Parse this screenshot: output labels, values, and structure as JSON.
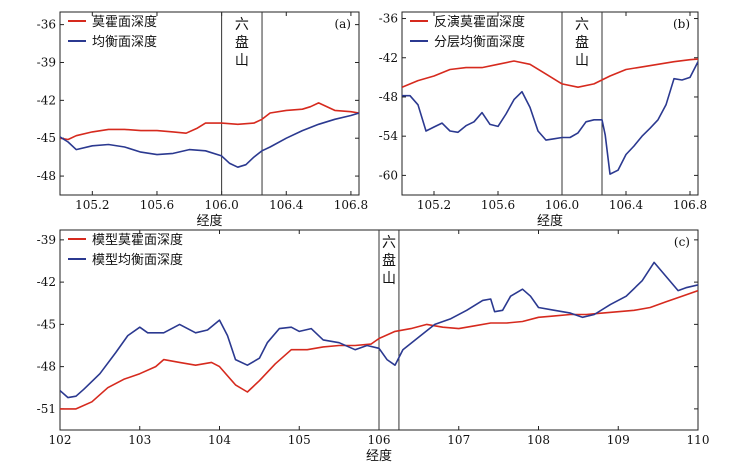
{
  "chart_data": [
    {
      "type": "line",
      "panel_label": "(a)",
      "xlabel": "经度",
      "ylabel": "",
      "xlim": [
        105.0,
        106.85
      ],
      "ylim": [
        -49.5,
        -35
      ],
      "xticks": [
        "105.2",
        "105.6",
        "106.0",
        "106.4",
        "106.8"
      ],
      "xtick_values": [
        105.2,
        105.6,
        106.0,
        106.4,
        106.8
      ],
      "yticks": [
        "-36",
        "-39",
        "-42",
        "-45",
        "-48"
      ],
      "ytick_values": [
        -36,
        -39,
        -42,
        -45,
        -48
      ],
      "vlines": [
        106.0,
        106.25
      ],
      "annotation": [
        "六",
        "盘",
        "山"
      ],
      "legend_position": "top-left",
      "series": [
        {
          "name": "莫霍面深度",
          "color": "#d62a1e",
          "x": [
            105.0,
            105.05,
            105.1,
            105.2,
            105.3,
            105.4,
            105.5,
            105.6,
            105.7,
            105.78,
            105.85,
            105.9,
            106.0,
            106.1,
            106.2,
            106.25,
            106.3,
            106.4,
            106.5,
            106.55,
            106.6,
            106.7,
            106.8,
            106.85
          ],
          "y": [
            -45.0,
            -45.1,
            -44.8,
            -44.5,
            -44.3,
            -44.3,
            -44.4,
            -44.4,
            -44.5,
            -44.6,
            -44.2,
            -43.8,
            -43.8,
            -43.9,
            -43.8,
            -43.5,
            -43.0,
            -42.8,
            -42.7,
            -42.5,
            -42.2,
            -42.8,
            -42.9,
            -43.0
          ]
        },
        {
          "name": "均衡面深度",
          "color": "#2b3990",
          "x": [
            105.0,
            105.05,
            105.1,
            105.2,
            105.3,
            105.4,
            105.5,
            105.6,
            105.7,
            105.8,
            105.9,
            106.0,
            106.05,
            106.1,
            106.15,
            106.2,
            106.25,
            106.3,
            106.4,
            106.5,
            106.6,
            106.7,
            106.8,
            106.85
          ],
          "y": [
            -44.9,
            -45.3,
            -45.9,
            -45.6,
            -45.5,
            -45.7,
            -46.1,
            -46.3,
            -46.2,
            -45.9,
            -46.0,
            -46.4,
            -47.0,
            -47.3,
            -47.1,
            -46.5,
            -46.0,
            -45.7,
            -45.0,
            -44.4,
            -43.9,
            -43.5,
            -43.2,
            -43.0
          ]
        }
      ]
    },
    {
      "type": "line",
      "panel_label": "(b)",
      "xlabel": "经度",
      "ylabel": "",
      "xlim": [
        105.0,
        106.85
      ],
      "ylim": [
        -63,
        -35
      ],
      "xticks": [
        "105.2",
        "105.6",
        "106.0",
        "106.4",
        "106.8"
      ],
      "xtick_values": [
        105.2,
        105.6,
        106.0,
        106.4,
        106.8
      ],
      "yticks": [
        "-36",
        "-42",
        "-48",
        "-54",
        "-60"
      ],
      "ytick_values": [
        -36,
        -42,
        -48,
        -54,
        -60
      ],
      "vlines": [
        106.0,
        106.25
      ],
      "annotation": [
        "六",
        "盘",
        "山"
      ],
      "legend_position": "top-left",
      "series": [
        {
          "name": "反演莫霍面深度",
          "color": "#d62a1e",
          "x": [
            105.0,
            105.1,
            105.2,
            105.3,
            105.4,
            105.5,
            105.6,
            105.7,
            105.8,
            105.9,
            106.0,
            106.1,
            106.2,
            106.3,
            106.4,
            106.5,
            106.6,
            106.7,
            106.8,
            106.85
          ],
          "y": [
            -46.5,
            -45.5,
            -44.8,
            -43.8,
            -43.5,
            -43.5,
            -43.0,
            -42.5,
            -43.0,
            -44.5,
            -46.0,
            -46.5,
            -46.0,
            -44.8,
            -43.8,
            -43.4,
            -43.0,
            -42.6,
            -42.3,
            -42.2
          ]
        },
        {
          "name": "分层均衡面深度",
          "color": "#2b3990",
          "x": [
            105.0,
            105.05,
            105.1,
            105.15,
            105.2,
            105.25,
            105.3,
            105.35,
            105.4,
            105.45,
            105.5,
            105.55,
            105.6,
            105.65,
            105.7,
            105.75,
            105.8,
            105.85,
            105.9,
            105.95,
            106.0,
            106.05,
            106.1,
            106.15,
            106.2,
            106.25,
            106.27,
            106.3,
            106.35,
            106.4,
            106.45,
            106.5,
            106.55,
            106.6,
            106.65,
            106.7,
            106.75,
            106.8,
            106.85
          ],
          "y": [
            -47.8,
            -47.8,
            -49.2,
            -53.2,
            -52.6,
            -52.0,
            -53.2,
            -53.4,
            -52.4,
            -51.8,
            -50.4,
            -52.2,
            -52.5,
            -50.6,
            -48.4,
            -47.2,
            -49.6,
            -53.2,
            -54.6,
            -54.4,
            -54.2,
            -54.2,
            -53.5,
            -51.8,
            -51.5,
            -51.5,
            -53.8,
            -59.8,
            -59.2,
            -56.8,
            -55.5,
            -54.0,
            -52.8,
            -51.5,
            -49.2,
            -45.2,
            -45.4,
            -45.0,
            -42.6
          ]
        }
      ]
    },
    {
      "type": "line",
      "panel_label": "(c)",
      "xlabel": "经度",
      "ylabel": "",
      "xlim": [
        102,
        110
      ],
      "ylim": [
        -52.5,
        -38.3
      ],
      "xticks": [
        "102",
        "103",
        "104",
        "105",
        "106",
        "107",
        "108",
        "109",
        "110"
      ],
      "xtick_values": [
        102,
        103,
        104,
        105,
        106,
        107,
        108,
        109,
        110
      ],
      "yticks": [
        "-39",
        "-42",
        "-45",
        "-48",
        "-51"
      ],
      "ytick_values": [
        -39,
        -42,
        -45,
        -48,
        -51
      ],
      "vlines": [
        106.0,
        106.25
      ],
      "annotation": [
        "六",
        "盘",
        "山"
      ],
      "legend_position": "top-left",
      "series": [
        {
          "name": "模型莫霍面深度",
          "color": "#d62a1e",
          "x": [
            102.0,
            102.2,
            102.4,
            102.6,
            102.8,
            103.0,
            103.2,
            103.3,
            103.5,
            103.7,
            103.9,
            104.0,
            104.2,
            104.35,
            104.5,
            104.7,
            104.9,
            105.1,
            105.3,
            105.5,
            105.7,
            105.9,
            106.0,
            106.2,
            106.4,
            106.6,
            106.8,
            107.0,
            107.2,
            107.4,
            107.6,
            107.8,
            108.0,
            108.2,
            108.4,
            108.6,
            108.8,
            109.0,
            109.2,
            109.4,
            109.6,
            109.8,
            110.0
          ],
          "y": [
            -51.0,
            -51.0,
            -50.5,
            -49.5,
            -48.9,
            -48.5,
            -48.0,
            -47.5,
            -47.7,
            -47.9,
            -47.7,
            -48.0,
            -49.3,
            -49.8,
            -49.0,
            -47.8,
            -46.8,
            -46.8,
            -46.6,
            -46.5,
            -46.5,
            -46.4,
            -46.0,
            -45.5,
            -45.3,
            -45.0,
            -45.2,
            -45.3,
            -45.1,
            -44.9,
            -44.9,
            -44.8,
            -44.5,
            -44.4,
            -44.3,
            -44.3,
            -44.2,
            -44.1,
            -44.0,
            -43.8,
            -43.4,
            -43.0,
            -42.6
          ]
        },
        {
          "name": "模型均衡面深度",
          "color": "#2b3990",
          "x": [
            102.0,
            102.1,
            102.2,
            102.3,
            102.5,
            102.7,
            102.85,
            103.0,
            103.1,
            103.3,
            103.5,
            103.7,
            103.85,
            104.0,
            104.1,
            104.2,
            104.35,
            104.5,
            104.6,
            104.75,
            104.9,
            105.0,
            105.15,
            105.3,
            105.5,
            105.7,
            105.85,
            106.0,
            106.1,
            106.2,
            106.3,
            106.5,
            106.7,
            106.9,
            107.1,
            107.3,
            107.4,
            107.45,
            107.55,
            107.65,
            107.8,
            107.9,
            108.0,
            108.2,
            108.4,
            108.55,
            108.7,
            108.9,
            109.1,
            109.3,
            109.45,
            109.6,
            109.75,
            109.85,
            110.0
          ],
          "y": [
            -49.7,
            -50.2,
            -50.1,
            -49.6,
            -48.5,
            -47.0,
            -45.8,
            -45.2,
            -45.6,
            -45.6,
            -45.0,
            -45.6,
            -45.4,
            -44.7,
            -45.8,
            -47.5,
            -47.9,
            -47.4,
            -46.3,
            -45.3,
            -45.2,
            -45.5,
            -45.3,
            -46.1,
            -46.3,
            -46.8,
            -46.5,
            -46.7,
            -47.5,
            -47.9,
            -46.8,
            -45.9,
            -45.0,
            -44.6,
            -44.0,
            -43.3,
            -43.2,
            -44.1,
            -44.0,
            -43.0,
            -42.5,
            -43.0,
            -43.8,
            -44.0,
            -44.2,
            -44.5,
            -44.3,
            -43.6,
            -43.0,
            -41.9,
            -40.6,
            -41.6,
            -42.6,
            -42.4,
            -42.2
          ]
        }
      ]
    }
  ]
}
